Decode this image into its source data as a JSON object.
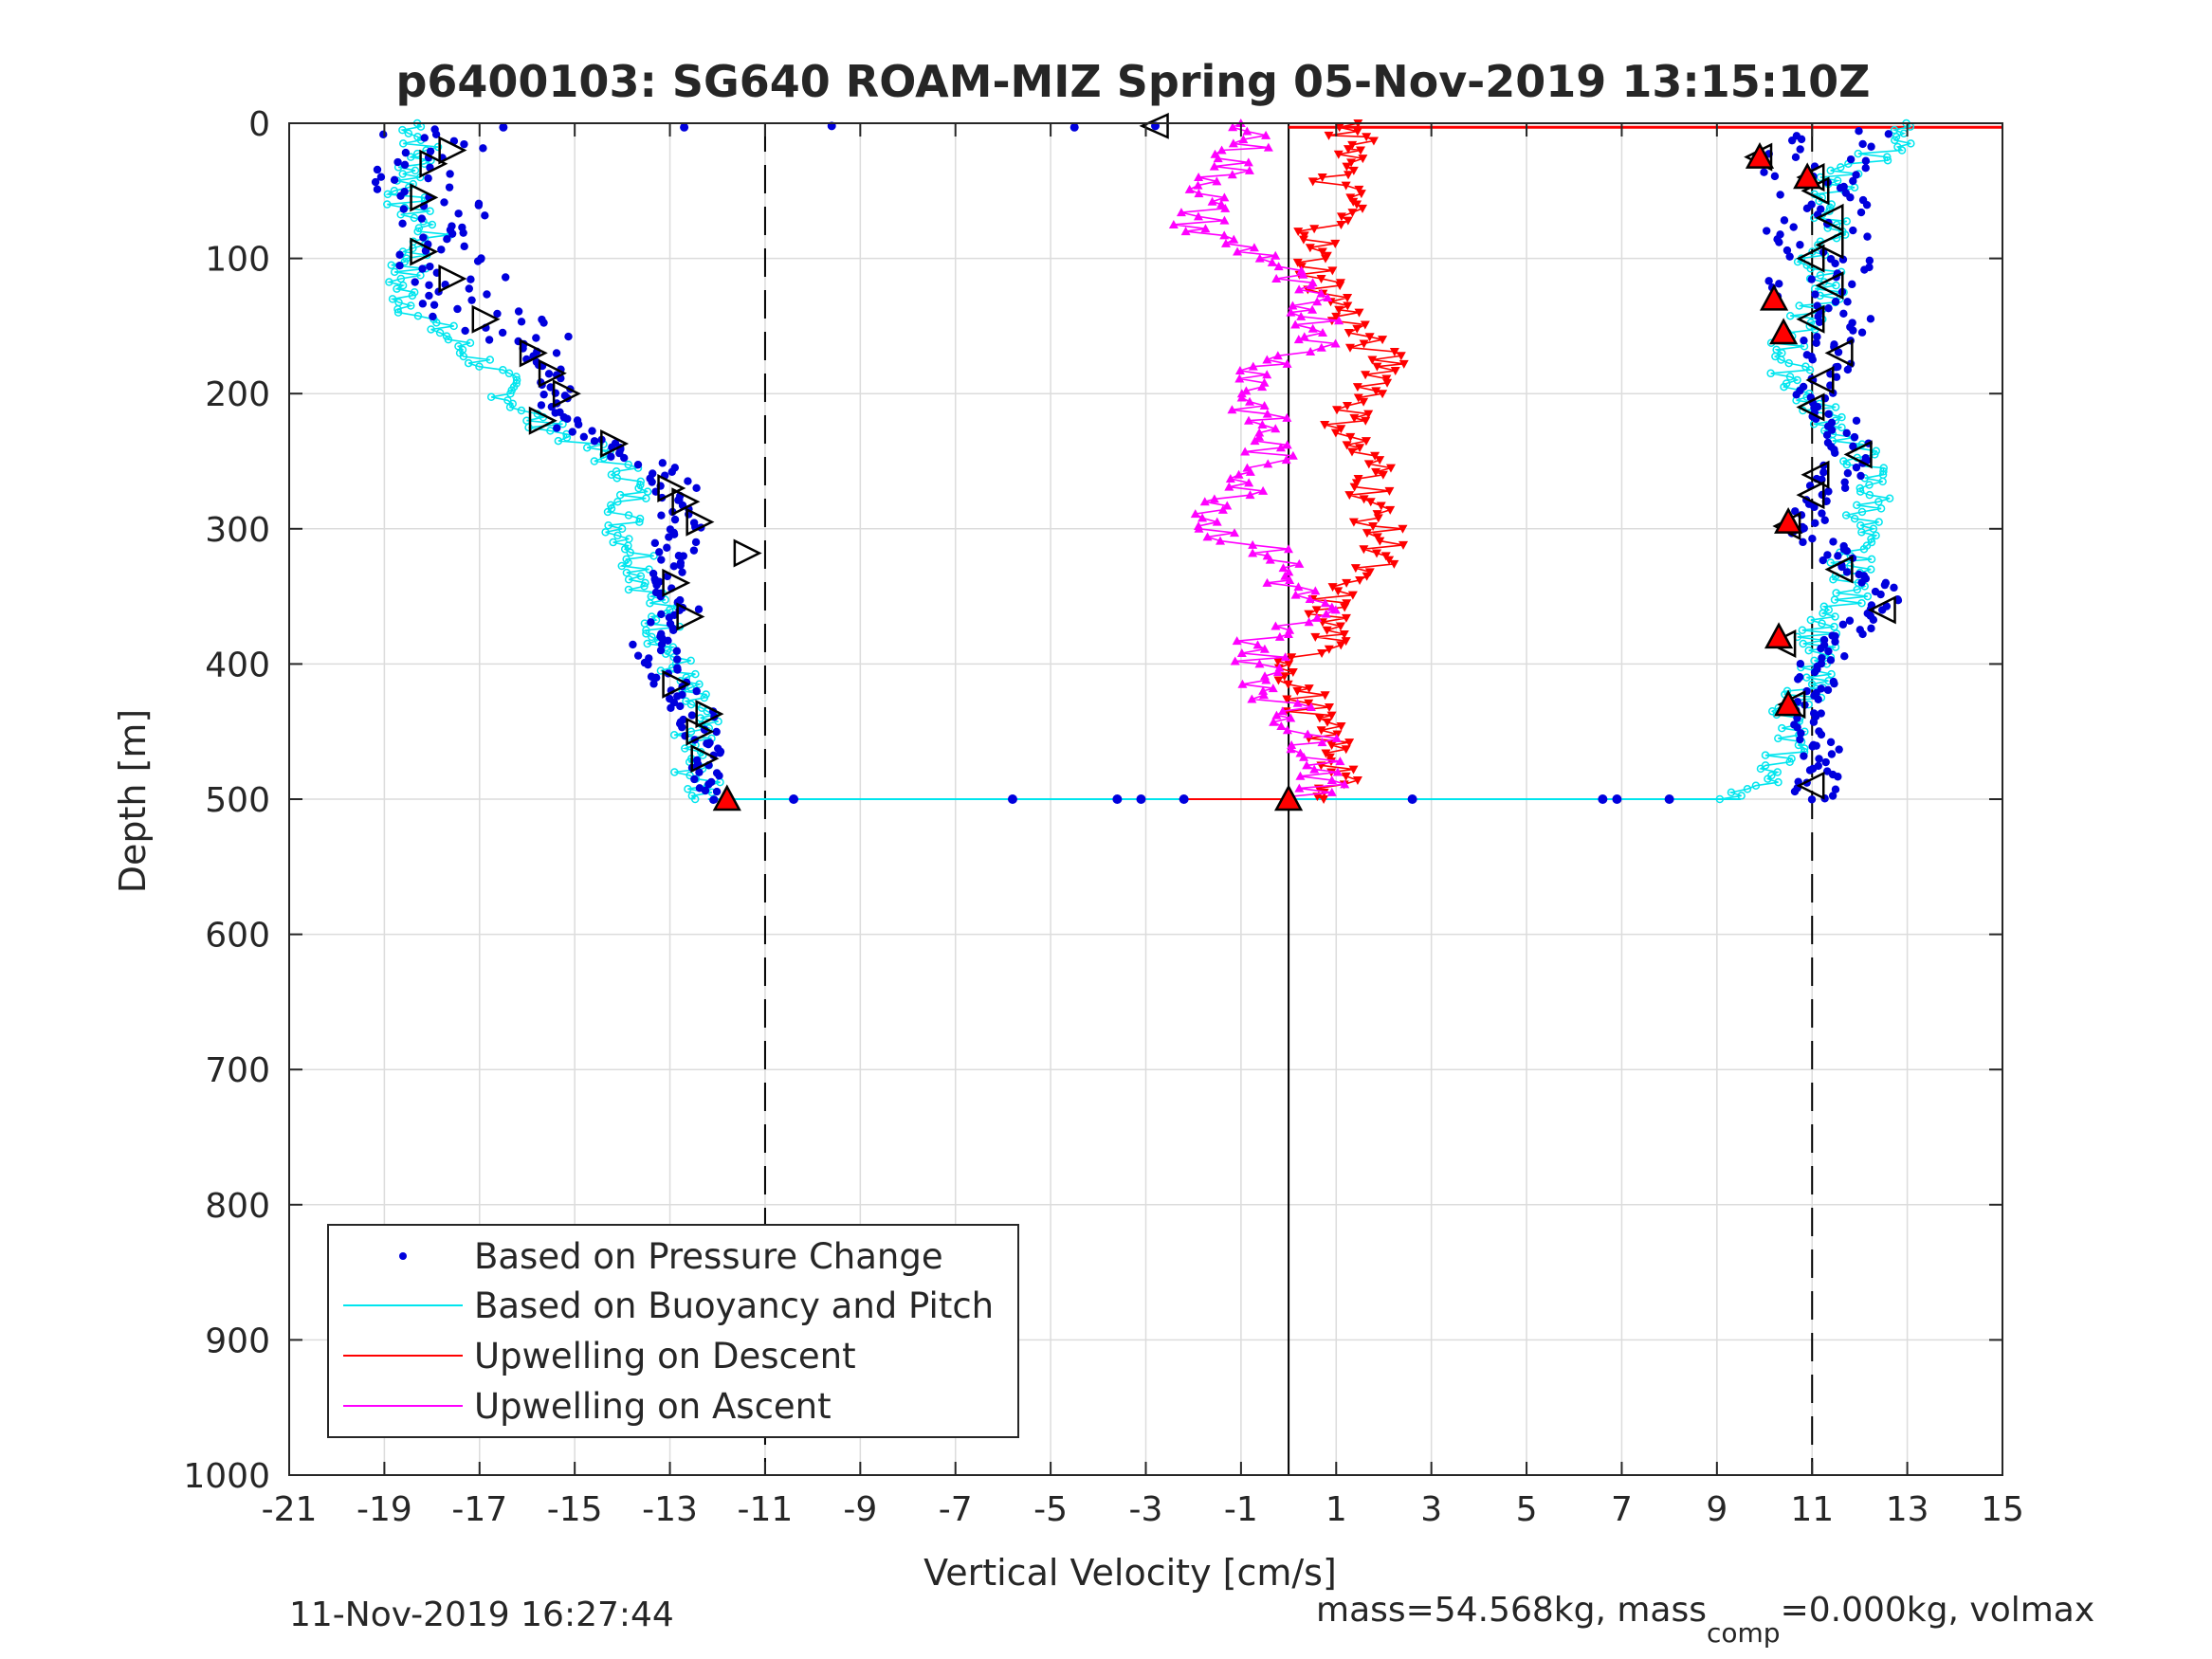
{
  "chart_data": {
    "type": "scatter",
    "title": "p6400103: SG640 ROAM-MIZ Spring 05-Nov-2019 13:15:10Z",
    "xlabel": "Vertical Velocity [cm/s]",
    "ylabel": "Depth [m]",
    "xlim": [
      -21,
      15
    ],
    "ylim": [
      0,
      1000
    ],
    "y_reversed": true,
    "grid": true,
    "x_ticks": [
      -21,
      -19,
      -17,
      -15,
      -13,
      -11,
      -9,
      -7,
      -5,
      -3,
      -1,
      1,
      3,
      5,
      7,
      9,
      11,
      13,
      15
    ],
    "y_ticks": [
      0,
      100,
      200,
      300,
      400,
      500,
      600,
      700,
      800,
      900,
      1000
    ],
    "x_tick_labels": [
      "-21",
      "-19",
      "-17",
      "-15",
      "-13",
      "-11",
      "-9",
      "-7",
      "-5",
      "-3",
      "-1",
      "1",
      "3",
      "5",
      "7",
      "9",
      "11",
      "13",
      "15"
    ],
    "y_tick_labels": [
      "0",
      "100",
      "200",
      "300",
      "400",
      "500",
      "600",
      "700",
      "800",
      "900",
      "1000"
    ],
    "legend": {
      "position": "bottom-left",
      "entries": [
        "Based on Pressure Change",
        "Based on Buoyancy and Pitch",
        "Upwelling on Descent",
        "Upwelling on Ascent"
      ]
    },
    "colors": {
      "pressure": "#0000dd",
      "buoyancy": "#00e5ee",
      "descent": "#ff0000",
      "ascent": "#ff00ff",
      "refline": "#000000",
      "grid": "#dcdcdc"
    },
    "reference_lines": {
      "dashed_x": [
        -11,
        11
      ],
      "solid_x": [
        0
      ]
    },
    "series": [
      {
        "name": "Based on Buoyancy and Pitch",
        "branch": "descent",
        "depth": [
          0,
          20,
          40,
          60,
          80,
          100,
          120,
          140,
          160,
          180,
          200,
          220,
          240,
          260,
          280,
          300,
          320,
          340,
          360,
          380,
          400,
          420,
          440,
          460,
          480,
          500
        ],
        "values": [
          -18.3,
          -18.2,
          -18.4,
          -18.6,
          -18.0,
          -18.4,
          -18.7,
          -18.3,
          -17.6,
          -16.8,
          -16.4,
          -15.8,
          -14.7,
          -13.8,
          -13.8,
          -14.0,
          -13.6,
          -13.5,
          -13.2,
          -13.1,
          -12.9,
          -12.7,
          -12.4,
          -12.6,
          -12.5,
          -12.2
        ]
      },
      {
        "name": "Based on Pressure Change",
        "branch": "descent",
        "depth": [
          5,
          20,
          40,
          60,
          80,
          100,
          120,
          140,
          160,
          180,
          200,
          220,
          240,
          260,
          280,
          300,
          320,
          340,
          360,
          380,
          400,
          420,
          440,
          460,
          480,
          500
        ],
        "values": [
          -18.0,
          -17.8,
          -18.2,
          -18.0,
          -17.8,
          -17.9,
          -17.3,
          -17.0,
          -16.0,
          -15.6,
          -15.4,
          -15.2,
          -14.3,
          -13.0,
          -12.8,
          -12.7,
          -13.0,
          -13.0,
          -12.8,
          -13.4,
          -13.2,
          -12.8,
          -12.4,
          -12.4,
          -12.2,
          -12.0
        ]
      },
      {
        "name": "Based on Buoyancy and Pitch",
        "branch": "ascent",
        "depth": [
          0,
          20,
          40,
          60,
          80,
          100,
          120,
          140,
          160,
          180,
          200,
          220,
          240,
          260,
          280,
          300,
          320,
          340,
          360,
          380,
          400,
          420,
          440,
          460,
          480,
          500
        ],
        "values": [
          13.2,
          12.5,
          11.6,
          11.3,
          11.6,
          11.1,
          11.3,
          11.0,
          10.5,
          10.5,
          10.8,
          11.4,
          11.9,
          12.2,
          12.3,
          12.0,
          11.8,
          11.9,
          11.6,
          11.1,
          11.0,
          10.9,
          10.5,
          10.5,
          10.2,
          9.5
        ]
      },
      {
        "name": "Based on Pressure Change",
        "branch": "ascent",
        "depth": [
          5,
          20,
          40,
          60,
          80,
          100,
          120,
          140,
          160,
          180,
          200,
          220,
          240,
          260,
          280,
          300,
          320,
          340,
          360,
          380,
          400,
          420,
          440,
          460,
          480,
          500
        ],
        "values": [
          11.8,
          11.2,
          11.0,
          11.2,
          11.1,
          11.2,
          11.0,
          11.2,
          11.2,
          11.4,
          11.1,
          11.5,
          11.8,
          11.6,
          11.1,
          10.9,
          11.4,
          12.4,
          12.6,
          11.5,
          11.1,
          11.0,
          11.0,
          11.1,
          11.2,
          11.0
        ]
      },
      {
        "name": "Upwelling on Descent",
        "depth": [
          0,
          10,
          20,
          40,
          60,
          80,
          100,
          120,
          140,
          160,
          180,
          200,
          220,
          240,
          260,
          280,
          300,
          320,
          340,
          360,
          380,
          400,
          420,
          440,
          460,
          480,
          500
        ],
        "values": [
          1.0,
          1.2,
          1.6,
          0.8,
          1.4,
          0.7,
          0.5,
          0.8,
          1.2,
          1.5,
          2.2,
          1.8,
          1.2,
          1.4,
          1.9,
          1.7,
          1.9,
          2.1,
          1.0,
          0.8,
          0.9,
          0.1,
          0.3,
          0.5,
          0.9,
          1.2,
          0.4
        ]
      },
      {
        "name": "Upwelling on Ascent",
        "depth": [
          0,
          20,
          40,
          60,
          80,
          100,
          120,
          140,
          160,
          180,
          200,
          220,
          240,
          260,
          280,
          300,
          320,
          340,
          360,
          380,
          400,
          420,
          440,
          460,
          480,
          500
        ],
        "values": [
          -0.5,
          -1.0,
          -1.4,
          -1.8,
          -1.9,
          -0.3,
          0.0,
          0.6,
          0.8,
          -0.4,
          -0.8,
          -0.6,
          -0.4,
          -0.6,
          -1.2,
          -1.6,
          -0.2,
          0.0,
          0.6,
          -0.5,
          -0.6,
          -0.3,
          0.1,
          0.6,
          0.9,
          0.2
        ]
      }
    ],
    "descent_triangles": {
      "depth": [
        20,
        30,
        55,
        95,
        115,
        145,
        170,
        185,
        200,
        220,
        237,
        270,
        280,
        295,
        318,
        340,
        365,
        415,
        437,
        450,
        470
      ],
      "values": [
        -17.6,
        -18.0,
        -18.2,
        -18.2,
        -17.6,
        -16.9,
        -15.9,
        -15.5,
        -15.2,
        -15.7,
        -14.2,
        -13.0,
        -12.7,
        -12.4,
        -11.4,
        -12.9,
        -12.6,
        -12.9,
        -12.2,
        -12.4,
        -12.3
      ]
    },
    "ascent_triangles": {
      "depth": [
        25,
        40,
        50,
        70,
        90,
        100,
        120,
        145,
        170,
        190,
        210,
        245,
        260,
        275,
        298,
        330,
        360,
        385,
        430,
        490
      ],
      "values": [
        9.9,
        11.0,
        11.1,
        11.4,
        11.4,
        11.0,
        11.4,
        11.0,
        11.6,
        11.2,
        11.0,
        12.0,
        11.1,
        11.0,
        10.5,
        11.6,
        12.5,
        10.4,
        10.6,
        11.0
      ]
    },
    "red_markers": {
      "depth": [
        25,
        40,
        130,
        155,
        295,
        380,
        430,
        500,
        500
      ],
      "values": [
        9.9,
        10.9,
        10.2,
        10.4,
        10.5,
        10.3,
        10.5,
        -11.8,
        0.0
      ]
    },
    "bottom_transect": {
      "depth": 500,
      "points": [
        -10.4,
        -5.8,
        -3.6,
        -3.1,
        -2.2,
        2.6,
        6.6,
        6.9,
        8.0
      ]
    },
    "surface_points": {
      "depth": [
        3,
        3,
        2,
        3,
        2
      ],
      "values": [
        -16.5,
        -12.7,
        -9.6,
        -4.5,
        -2.8
      ]
    },
    "surface_marker": {
      "x": -2.8,
      "depth": 2
    },
    "surface_high_bias": {
      "x_from": 0.0,
      "x_to": 15.0,
      "depth": 3
    }
  },
  "footer": {
    "timestamp": "11-Nov-2019 16:27:44",
    "mass_text": "mass=54.568kg, mass",
    "mass_sub": "comp",
    "mass_tail": "=0.000kg, volmax"
  }
}
